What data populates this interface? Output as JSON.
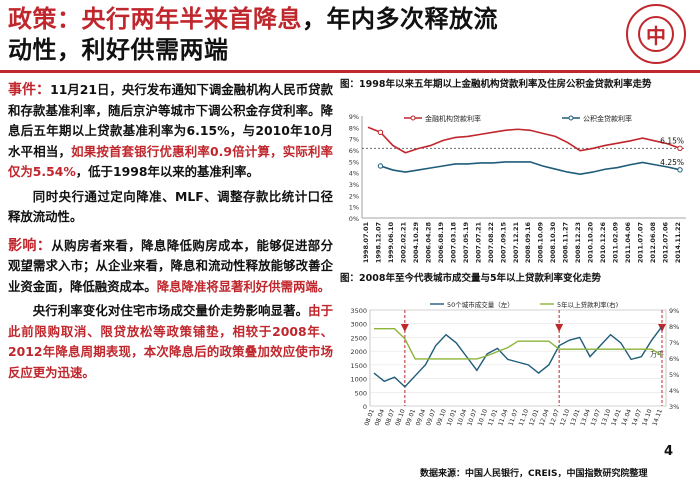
{
  "header": {
    "title_prefix": "政策：央行两年半来首",
    "title_highlight": "降息",
    "title_rest": "，年内多次释放流",
    "title_line2": "动性，利好供需两端",
    "logo_char": "中"
  },
  "body": {
    "event_label": "事件：",
    "event_text": "11月21日，央行发布通知下调金融机构人民币贷款和存款基准利率，随后京沪等城市下调公积金存贷利率。降息后五年期以上贷款基准利率为6.15%，与2010年10月水平相当，",
    "event_red": "如果按首套银行优惠利率0.9倍计算，实际利率仅为5.54%",
    "event_tail": "，低于1998年以来的基准利率。",
    "event_para2": "同时央行通过定向降准、MLF、调整存款比统计口径释放流动性。",
    "impact_label": "影响：",
    "impact_text": "从购房者来看，降息降低购房成本，能够促进部分观望需求入市；从企业来看，降息和流动性释放能够改善企业资金面，降低融资成本。",
    "impact_red": "降息降准将显著利好供需两端。",
    "impact_para2_black": "央行利率变化对住宅市场成交量价走势影响显著。",
    "impact_para2_red": "由于此前限购取消、限贷放松等政策铺垫，相较于2008年、2012年降息周期表现，本次降息后的政策叠加效应使市场反应更为迅速。"
  },
  "footer": {
    "page": "4",
    "source": "数据来源：中国人民银行，CREIS，中国指数研究院整理"
  },
  "chart_data": [
    {
      "type": "line",
      "title": "图：1998年以来五年期以上金融机构贷款利率及住房公积金贷款利率走势",
      "ylim": [
        0,
        9
      ],
      "yticks": [
        "0%",
        "1%",
        "2%",
        "3%",
        "4%",
        "5%",
        "6%",
        "7%",
        "8%",
        "9%"
      ],
      "reference_line": 6.15,
      "categories": [
        "1998.07.01",
        "1998.12.07",
        "1999.06.10",
        "2002.02.21",
        "2004.10.29",
        "2006.04.28",
        "2006.08.19",
        "2007.03.18",
        "2007.05.19",
        "2007.07.21",
        "2007.08.22",
        "2007.09.15",
        "2007.12.21",
        "2008.09.16",
        "2008.10.09",
        "2008.10.30",
        "2008.11.27",
        "2008.12.23",
        "2010.10.20",
        "2010.12.26",
        "2011.02.09",
        "2011.04.06",
        "2011.07.07",
        "2012.06.08",
        "2012.07.06",
        "2014.11.22"
      ],
      "series": [
        {
          "name": "金融机构贷款利率",
          "color": "#c0272d",
          "end_label": "6.15%",
          "values": [
            8.01,
            7.56,
            6.39,
            5.76,
            6.12,
            6.39,
            6.84,
            7.11,
            7.2,
            7.38,
            7.56,
            7.74,
            7.83,
            7.74,
            7.47,
            7.2,
            6.66,
            5.94,
            6.14,
            6.4,
            6.6,
            6.8,
            7.05,
            6.8,
            6.55,
            6.15
          ]
        },
        {
          "name": "公积金贷款利率",
          "color": "#1f5c7a",
          "end_label": "4.25%",
          "values": [
            null,
            4.59,
            4.23,
            4.05,
            4.23,
            4.41,
            4.59,
            4.77,
            4.77,
            4.86,
            4.86,
            4.95,
            4.95,
            4.95,
            4.59,
            4.32,
            4.05,
            3.87,
            4.05,
            4.3,
            4.45,
            4.7,
            4.9,
            4.7,
            4.5,
            4.25
          ]
        }
      ]
    },
    {
      "type": "line",
      "title": "图：2008年至今代表城市成交量与5年以上贷款利率变化走势",
      "y_left": [
        "0",
        "500",
        "1000",
        "1500",
        "2000",
        "2500",
        "3000",
        "3500"
      ],
      "y_right": [
        "3%",
        "4%",
        "5%",
        "6%",
        "7%",
        "8%",
        "9%"
      ],
      "y_left_unit": "万平",
      "x_labels": [
        "08.01",
        "08.04",
        "08.07",
        "08.10",
        "09.01",
        "09.04",
        "09.07",
        "09.10",
        "10.01",
        "10.04",
        "10.07",
        "10.10",
        "11.01",
        "11.04",
        "11.07",
        "11.10",
        "12.01",
        "12.04",
        "12.07",
        "12.10",
        "13.01",
        "13.04",
        "13.07",
        "13.10",
        "14.01",
        "14.04",
        "14.07",
        "14.10",
        "14.11"
      ],
      "series": [
        {
          "name": "50个城市成交量（左）",
          "color": "#1f5c7a",
          "axis": "left",
          "values": [
            1200,
            900,
            1050,
            700,
            1100,
            1500,
            2200,
            2600,
            2300,
            1800,
            1300,
            1900,
            2100,
            1700,
            1600,
            1500,
            1200,
            1500,
            2200,
            2400,
            2500,
            1800,
            2200,
            2600,
            2300,
            1700,
            1800,
            2400,
            2900
          ]
        },
        {
          "name": "5年以上贷款利率(右)",
          "color": "#8db33a",
          "axis": "right",
          "values": [
            7.83,
            7.83,
            7.83,
            7.2,
            5.94,
            5.94,
            5.94,
            5.94,
            5.94,
            5.94,
            5.94,
            6.14,
            6.4,
            6.65,
            7.05,
            7.05,
            7.05,
            7.05,
            6.55,
            6.55,
            6.55,
            6.55,
            6.55,
            6.55,
            6.55,
            6.55,
            6.55,
            6.55,
            6.15
          ]
        }
      ],
      "markers_x": [
        "08.10",
        "12.07",
        "14.11"
      ]
    }
  ]
}
